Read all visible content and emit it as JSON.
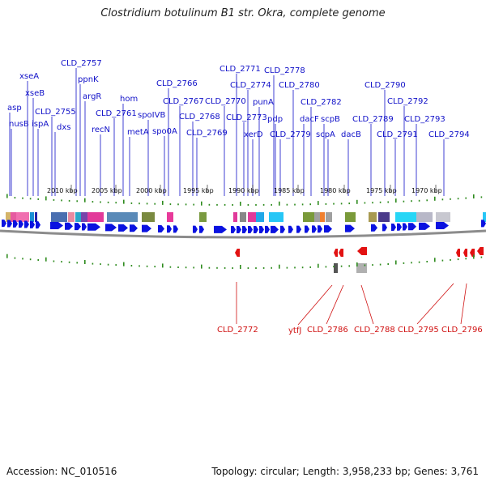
{
  "title": "Clostridium botulinum B1 str. Okra, complete genome",
  "footer": {
    "accession": "Accession: NC_010516",
    "summary": "Topology: circular; Length: 3,958,233 bp; Genes: 3,761"
  },
  "colors": {
    "forward_gene": "#0a12e0",
    "reverse_gene": "#e21212",
    "forward_label": "#1010c8",
    "reverse_label": "#d01010",
    "tick": "#2e8b1e",
    "backbone": "#888888"
  },
  "kbp_ticks": [
    "2010 kbp",
    "2005 kbp",
    "2000 kbp",
    "1995 kbp",
    "1990 kbp",
    "1985 kbp",
    "1980 kbp",
    "1975 kbp",
    "1970 kbp"
  ],
  "forward_labels": [
    "asp",
    "nusB",
    "xseA",
    "xseB",
    "ispA",
    "CLD_2755",
    "dxs",
    "CLD_2757",
    "ppnK",
    "argR",
    "recN",
    "CLD_2761",
    "hom",
    "metA",
    "spoIVB",
    "spo0A",
    "CLD_2766",
    "CLD_2767",
    "CLD_2768",
    "CLD_2769",
    "CLD_2770",
    "CLD_2771",
    "CLD_2773",
    "CLD_2774",
    "xerD",
    "punA",
    "CLD_2778",
    "pdp",
    "CLD_2779",
    "CLD_2780",
    "dacF",
    "CLD_2782",
    "scpB",
    "scpA",
    "dacB",
    "CLD_2789",
    "CLD_2790",
    "CLD_2791",
    "CLD_2792",
    "CLD_2793",
    "CLD_2794"
  ],
  "reverse_labels": [
    "CLD_2772",
    "ytfJ",
    "CLD_2786",
    "CLD_2788",
    "CLD_2795",
    "CLD_2796"
  ]
}
